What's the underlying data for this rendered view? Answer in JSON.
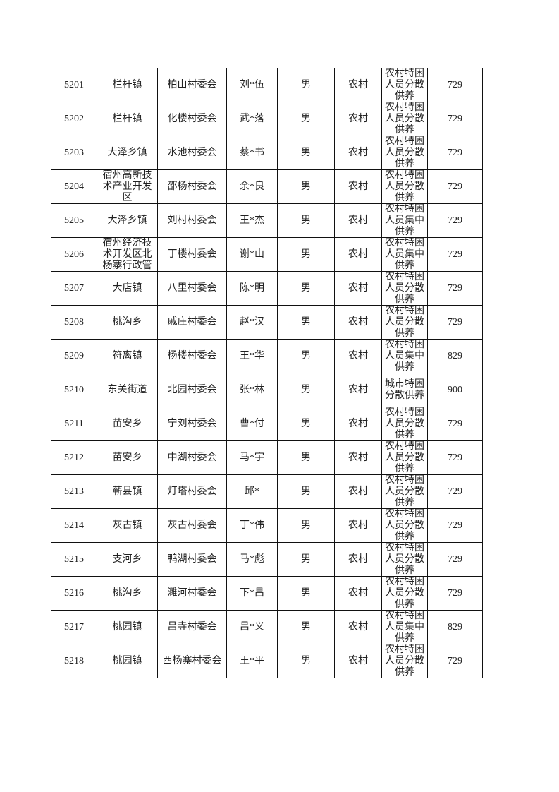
{
  "rows": [
    {
      "no": "5201",
      "town": "栏杆镇",
      "village": "柏山村委会",
      "name": "刘*伍",
      "gender": "男",
      "area": "农村",
      "type": "农村特困人员分散供养",
      "amount": "729"
    },
    {
      "no": "5202",
      "town": "栏杆镇",
      "village": "化楼村委会",
      "name": "武*落",
      "gender": "男",
      "area": "农村",
      "type": "农村特困人员分散供养",
      "amount": "729"
    },
    {
      "no": "5203",
      "town": "大泽乡镇",
      "village": "水池村委会",
      "name": "蔡*书",
      "gender": "男",
      "area": "农村",
      "type": "农村特困人员分散供养",
      "amount": "729"
    },
    {
      "no": "5204",
      "town": "宿州高新技术产业开发区",
      "village": "邵杨村委会",
      "name": "余*良",
      "gender": "男",
      "area": "农村",
      "type": "农村特困人员分散供养",
      "amount": "729"
    },
    {
      "no": "5205",
      "town": "大泽乡镇",
      "village": "刘村村委会",
      "name": "王*杰",
      "gender": "男",
      "area": "农村",
      "type": "农村特困人员集中供养",
      "amount": "729"
    },
    {
      "no": "5206",
      "town": "宿州经济技术开发区北杨寨行政管",
      "village": "丁楼村委会",
      "name": "谢*山",
      "gender": "男",
      "area": "农村",
      "type": "农村特困人员集中供养",
      "amount": "729"
    },
    {
      "no": "5207",
      "town": "大店镇",
      "village": "八里村委会",
      "name": "陈*明",
      "gender": "男",
      "area": "农村",
      "type": "农村特困人员分散供养",
      "amount": "729"
    },
    {
      "no": "5208",
      "town": "桃沟乡",
      "village": "戚庄村委会",
      "name": "赵*汉",
      "gender": "男",
      "area": "农村",
      "type": "农村特困人员分散供养",
      "amount": "729"
    },
    {
      "no": "5209",
      "town": "符离镇",
      "village": "杨楼村委会",
      "name": "王*华",
      "gender": "男",
      "area": "农村",
      "type": "农村特困人员集中供养",
      "amount": "829"
    },
    {
      "no": "5210",
      "town": "东关街道",
      "village": "北园村委会",
      "name": "张*林",
      "gender": "男",
      "area": "农村",
      "type": "城市特困分散供养",
      "amount": "900"
    },
    {
      "no": "5211",
      "town": "苗安乡",
      "village": "宁刘村委会",
      "name": "曹*付",
      "gender": "男",
      "area": "农村",
      "type": "农村特困人员分散供养",
      "amount": "729"
    },
    {
      "no": "5212",
      "town": "苗安乡",
      "village": "中湖村委会",
      "name": "马*宇",
      "gender": "男",
      "area": "农村",
      "type": "农村特困人员分散供养",
      "amount": "729"
    },
    {
      "no": "5213",
      "town": "蕲县镇",
      "village": "灯塔村委会",
      "name": "邱*",
      "gender": "男",
      "area": "农村",
      "type": "农村特困人员分散供养",
      "amount": "729"
    },
    {
      "no": "5214",
      "town": "灰古镇",
      "village": "灰古村委会",
      "name": "丁*伟",
      "gender": "男",
      "area": "农村",
      "type": "农村特困人员分散供养",
      "amount": "729"
    },
    {
      "no": "5215",
      "town": "支河乡",
      "village": "鸭湖村委会",
      "name": "马*彪",
      "gender": "男",
      "area": "农村",
      "type": "农村特困人员分散供养",
      "amount": "729"
    },
    {
      "no": "5216",
      "town": "桃沟乡",
      "village": "濉河村委会",
      "name": "下*昌",
      "gender": "男",
      "area": "农村",
      "type": "农村特困人员分散供养",
      "amount": "729"
    },
    {
      "no": "5217",
      "town": "桃园镇",
      "village": "吕寺村委会",
      "name": "吕*义",
      "gender": "男",
      "area": "农村",
      "type": "农村特困人员集中供养",
      "amount": "829"
    },
    {
      "no": "5218",
      "town": "桃园镇",
      "village": "西杨寨村委会",
      "name": "王*平",
      "gender": "男",
      "area": "农村",
      "type": "农村特困人员分散供养",
      "amount": "729"
    }
  ]
}
